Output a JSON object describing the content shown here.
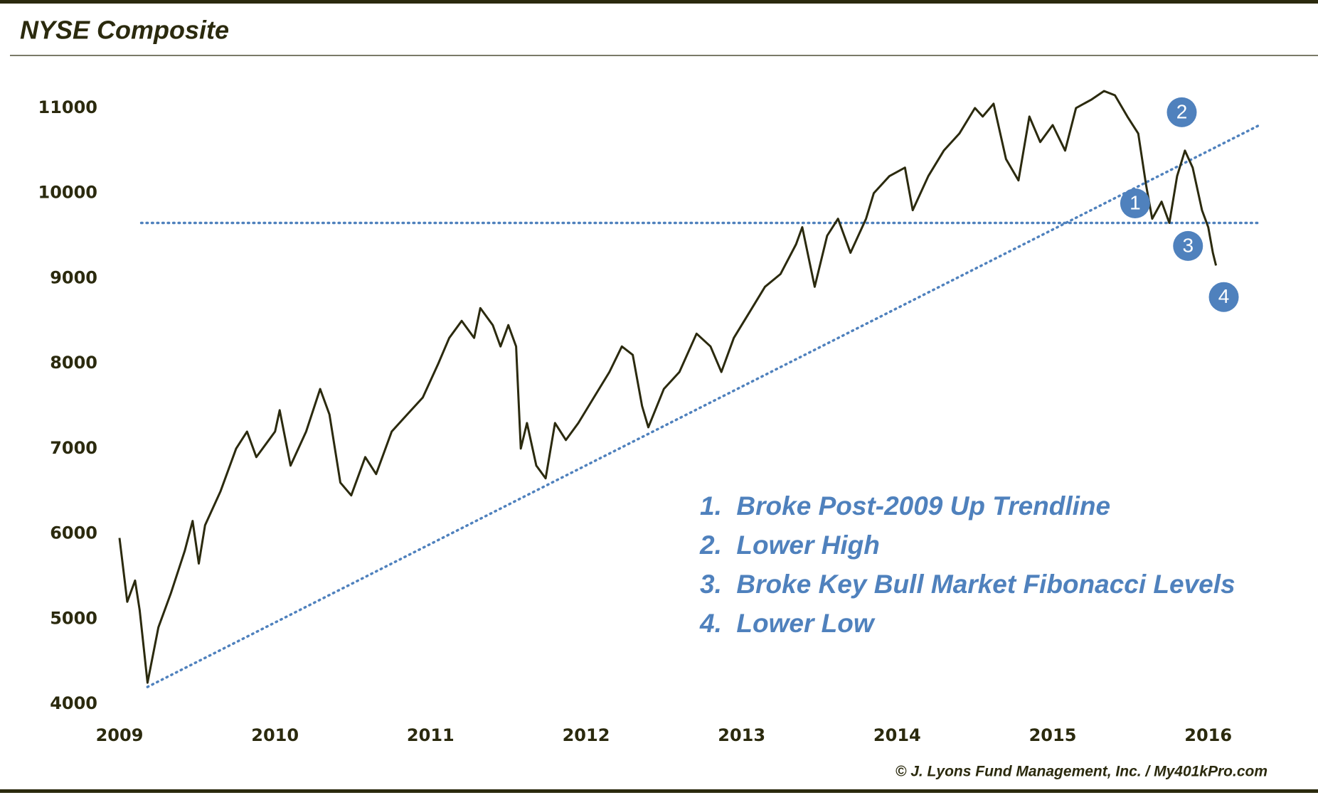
{
  "chart_data": {
    "type": "line",
    "title": "NYSE Composite",
    "source": "© J. Lyons Fund Management, Inc. / My401kPro.com",
    "color": "#2b2a0e",
    "x": [
      2009.0,
      2009.05,
      2009.1,
      2009.13,
      2009.18,
      2009.25,
      2009.33,
      2009.42,
      2009.47,
      2009.51,
      2009.55,
      2009.65,
      2009.75,
      2009.82,
      2009.88,
      2010.0,
      2010.03,
      2010.1,
      2010.2,
      2010.29,
      2010.35,
      2010.42,
      2010.49,
      2010.58,
      2010.65,
      2010.75,
      2010.85,
      2010.95,
      2011.05,
      2011.12,
      2011.2,
      2011.28,
      2011.32,
      2011.4,
      2011.45,
      2011.5,
      2011.55,
      2011.58,
      2011.62,
      2011.68,
      2011.74,
      2011.8,
      2011.87,
      2011.95,
      2012.05,
      2012.15,
      2012.23,
      2012.3,
      2012.36,
      2012.4,
      2012.5,
      2012.6,
      2012.71,
      2012.8,
      2012.87,
      2012.95,
      2013.05,
      2013.15,
      2013.25,
      2013.35,
      2013.39,
      2013.47,
      2013.55,
      2013.62,
      2013.7,
      2013.8,
      2013.85,
      2013.95,
      2014.05,
      2014.1,
      2014.2,
      2014.3,
      2014.4,
      2014.5,
      2014.55,
      2014.62,
      2014.7,
      2014.78,
      2014.85,
      2014.92,
      2015.0,
      2015.08,
      2015.15,
      2015.25,
      2015.33,
      2015.4,
      2015.48,
      2015.55,
      2015.6,
      2015.64,
      2015.7,
      2015.75,
      2015.8,
      2015.85,
      2015.9,
      2015.96,
      2016.0,
      2016.03,
      2016.05
    ],
    "values": [
      5950,
      5200,
      5450,
      5100,
      4250,
      4900,
      5300,
      5800,
      6150,
      5650,
      6100,
      6500,
      7000,
      7200,
      6900,
      7200,
      7450,
      6800,
      7200,
      7700,
      7400,
      6600,
      6450,
      6900,
      6700,
      7200,
      7400,
      7600,
      8000,
      8300,
      8500,
      8300,
      8650,
      8450,
      8200,
      8450,
      8200,
      7000,
      7300,
      6800,
      6650,
      7300,
      7100,
      7300,
      7600,
      7900,
      8200,
      8100,
      7500,
      7250,
      7700,
      7900,
      8350,
      8200,
      7900,
      8300,
      8600,
      8900,
      9050,
      9400,
      9600,
      8900,
      9500,
      9700,
      9300,
      9700,
      10000,
      10200,
      10300,
      9800,
      10200,
      10500,
      10700,
      11000,
      10900,
      11050,
      10400,
      10150,
      10900,
      10600,
      10800,
      10500,
      11000,
      11100,
      11200,
      11150,
      10900,
      10700,
      10100,
      9700,
      9900,
      9650,
      10200,
      10500,
      10300,
      9800,
      9600,
      9300,
      9150
    ],
    "xlim": [
      2009,
      2016.5
    ],
    "ylim": [
      4000,
      11300
    ],
    "xticks": [
      2009,
      2010,
      2011,
      2012,
      2013,
      2014,
      2015,
      2016
    ],
    "yticks": [
      4000,
      5000,
      6000,
      7000,
      8000,
      9000,
      10000,
      11000
    ],
    "reference_lines": [
      {
        "x": [
          2009.14,
          2016.33
        ],
        "y": [
          9650,
          9650
        ],
        "color": "#4f81bd"
      },
      {
        "x": [
          2009.18,
          2016.33
        ],
        "y": [
          4200,
          10800
        ],
        "color": "#4f81bd"
      }
    ],
    "markers": [
      {
        "label": "1",
        "x": 2015.53,
        "y": 9880
      },
      {
        "label": "2",
        "x": 2015.83,
        "y": 10950
      },
      {
        "label": "3",
        "x": 2015.87,
        "y": 9380
      },
      {
        "label": "4",
        "x": 2016.1,
        "y": 8780
      }
    ],
    "marker_color": "#4f81bd",
    "annotations": [
      "1.  Broke Post-2009 Up Trendline",
      "2.  Lower High",
      "3.  Broke Key Bull Market Fibonacci Levels",
      "4.  Lower Low"
    ],
    "annotation_color": "#4f81bd"
  }
}
